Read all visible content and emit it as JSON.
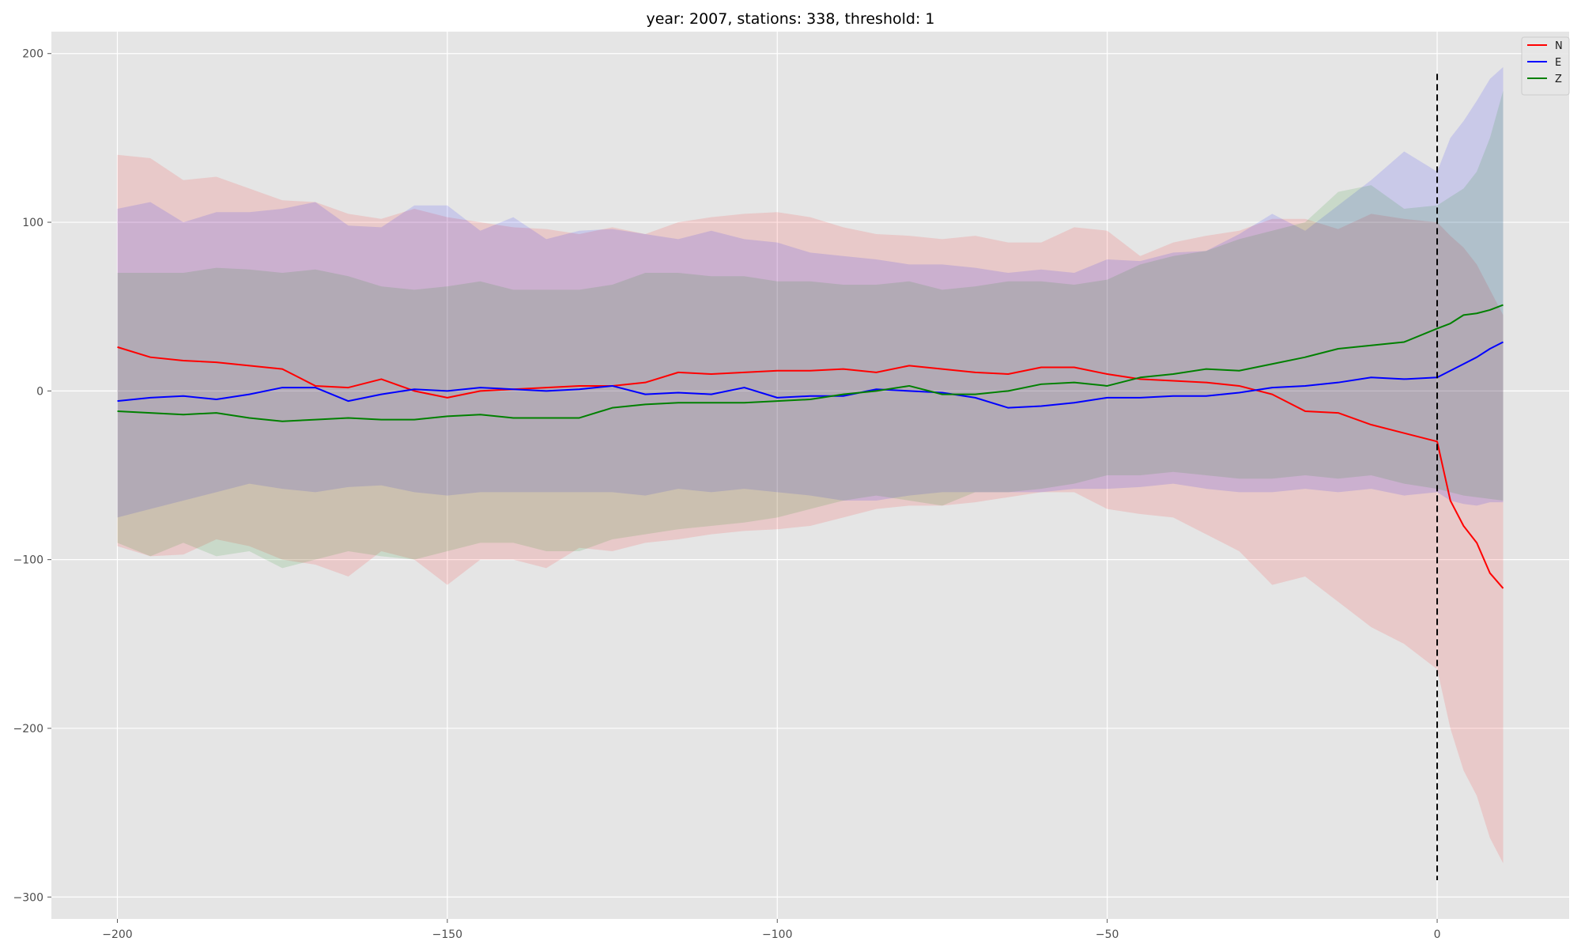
{
  "chart_data": {
    "type": "line",
    "title": "year: 2007, stations: 338, threshold: 1",
    "xlabel": "",
    "ylabel": "",
    "xlim": [
      -210,
      20
    ],
    "ylim": [
      -313,
      213
    ],
    "xticks": [
      -200,
      -150,
      -100,
      -50,
      0
    ],
    "yticks": [
      200,
      100,
      0,
      -100,
      -200,
      -300
    ],
    "xtick_labels": [
      "−200",
      "−150",
      "−100",
      "−50",
      "0"
    ],
    "ytick_labels": [
      "200",
      "100",
      "0",
      "−100",
      "−200",
      "−300"
    ],
    "grid": true,
    "legend_position": "top-right",
    "vline": {
      "x": 0,
      "y_range": [
        -290,
        188
      ],
      "color": "#000000",
      "style": "dashed"
    },
    "series": [
      {
        "name": "N",
        "color": "#ff0000",
        "x": [
          -200,
          -195,
          -190,
          -185,
          -180,
          -175,
          -170,
          -165,
          -160,
          -155,
          -150,
          -145,
          -140,
          -135,
          -130,
          -125,
          -120,
          -115,
          -110,
          -105,
          -100,
          -95,
          -90,
          -85,
          -80,
          -75,
          -70,
          -65,
          -60,
          -55,
          -50,
          -45,
          -40,
          -35,
          -30,
          -25,
          -20,
          -15,
          -10,
          -5,
          0,
          2,
          4,
          6,
          8,
          10
        ],
        "values": [
          26,
          20,
          18,
          17,
          15,
          13,
          3,
          2,
          7,
          0,
          -4,
          0,
          1,
          2,
          3,
          3,
          5,
          11,
          10,
          11,
          12,
          12,
          13,
          11,
          15,
          13,
          11,
          10,
          14,
          14,
          10,
          7,
          6,
          5,
          3,
          -2,
          -12,
          -13,
          -20,
          -25,
          -30,
          -65,
          -80,
          -90,
          -108,
          -117
        ],
        "upper": [
          140,
          138,
          125,
          127,
          120,
          113,
          112,
          105,
          102,
          108,
          103,
          100,
          97,
          96,
          93,
          97,
          93,
          100,
          103,
          105,
          106,
          103,
          97,
          93,
          92,
          90,
          92,
          88,
          88,
          97,
          95,
          80,
          88,
          92,
          95,
          102,
          102,
          96,
          105,
          102,
          100,
          92,
          85,
          75,
          60,
          45
        ],
        "lower": [
          -92,
          -98,
          -97,
          -88,
          -92,
          -100,
          -103,
          -110,
          -95,
          -100,
          -115,
          -100,
          -100,
          -105,
          -93,
          -95,
          -90,
          -88,
          -85,
          -83,
          -82,
          -80,
          -75,
          -70,
          -68,
          -68,
          -66,
          -63,
          -60,
          -60,
          -70,
          -73,
          -75,
          -85,
          -95,
          -115,
          -110,
          -125,
          -140,
          -150,
          -165,
          -200,
          -225,
          -240,
          -265,
          -280
        ]
      },
      {
        "name": "E",
        "color": "#0000ff",
        "x": [
          -200,
          -195,
          -190,
          -185,
          -180,
          -175,
          -170,
          -165,
          -160,
          -155,
          -150,
          -145,
          -140,
          -135,
          -130,
          -125,
          -120,
          -115,
          -110,
          -105,
          -100,
          -95,
          -90,
          -85,
          -80,
          -75,
          -70,
          -65,
          -60,
          -55,
          -50,
          -45,
          -40,
          -35,
          -30,
          -25,
          -20,
          -15,
          -10,
          -5,
          0,
          2,
          4,
          6,
          8,
          10
        ],
        "values": [
          -6,
          -4,
          -3,
          -5,
          -2,
          2,
          2,
          -6,
          -2,
          1,
          0,
          2,
          1,
          0,
          1,
          3,
          -2,
          -1,
          -2,
          2,
          -4,
          -3,
          -3,
          1,
          0,
          -1,
          -4,
          -10,
          -9,
          -7,
          -4,
          -4,
          -3,
          -3,
          -1,
          2,
          3,
          5,
          8,
          7,
          8,
          12,
          16,
          20,
          25,
          29
        ],
        "upper": [
          108,
          112,
          100,
          106,
          106,
          108,
          112,
          98,
          97,
          110,
          110,
          95,
          103,
          90,
          95,
          96,
          93,
          90,
          95,
          90,
          88,
          82,
          80,
          78,
          75,
          75,
          73,
          70,
          72,
          70,
          78,
          77,
          82,
          83,
          93,
          105,
          95,
          110,
          125,
          142,
          130,
          150,
          160,
          172,
          185,
          192
        ],
        "lower": [
          -75,
          -70,
          -65,
          -60,
          -55,
          -58,
          -60,
          -57,
          -56,
          -60,
          -62,
          -60,
          -60,
          -60,
          -60,
          -60,
          -62,
          -58,
          -60,
          -58,
          -60,
          -62,
          -65,
          -65,
          -62,
          -60,
          -60,
          -60,
          -60,
          -58,
          -58,
          -57,
          -55,
          -58,
          -60,
          -60,
          -58,
          -60,
          -58,
          -62,
          -60,
          -65,
          -67,
          -68,
          -66,
          -66
        ]
      },
      {
        "name": "Z",
        "color": "#008000",
        "x": [
          -200,
          -195,
          -190,
          -185,
          -180,
          -175,
          -170,
          -165,
          -160,
          -155,
          -150,
          -145,
          -140,
          -135,
          -130,
          -125,
          -120,
          -115,
          -110,
          -105,
          -100,
          -95,
          -90,
          -85,
          -80,
          -75,
          -70,
          -65,
          -60,
          -55,
          -50,
          -45,
          -40,
          -35,
          -30,
          -25,
          -20,
          -15,
          -10,
          -5,
          0,
          2,
          4,
          6,
          8,
          10
        ],
        "values": [
          -12,
          -13,
          -14,
          -13,
          -16,
          -18,
          -17,
          -16,
          -17,
          -17,
          -15,
          -14,
          -16,
          -16,
          -16,
          -10,
          -8,
          -7,
          -7,
          -7,
          -6,
          -5,
          -2,
          0,
          3,
          -2,
          -2,
          0,
          4,
          5,
          3,
          8,
          10,
          13,
          12,
          16,
          20,
          25,
          27,
          29,
          37,
          40,
          45,
          46,
          48,
          51
        ],
        "upper": [
          70,
          70,
          70,
          73,
          72,
          70,
          72,
          68,
          62,
          60,
          62,
          65,
          60,
          60,
          60,
          63,
          70,
          70,
          68,
          68,
          65,
          65,
          63,
          63,
          65,
          60,
          62,
          65,
          65,
          63,
          66,
          75,
          80,
          83,
          90,
          95,
          100,
          118,
          122,
          108,
          110,
          115,
          120,
          130,
          150,
          178
        ],
        "lower": [
          -90,
          -98,
          -90,
          -98,
          -95,
          -105,
          -100,
          -95,
          -98,
          -100,
          -95,
          -90,
          -90,
          -95,
          -95,
          -88,
          -85,
          -82,
          -80,
          -78,
          -75,
          -70,
          -65,
          -62,
          -65,
          -68,
          -60,
          -60,
          -58,
          -55,
          -50,
          -50,
          -48,
          -50,
          -52,
          -52,
          -50,
          -52,
          -50,
          -55,
          -58,
          -60,
          -62,
          -63,
          -64,
          -65
        ]
      }
    ]
  }
}
